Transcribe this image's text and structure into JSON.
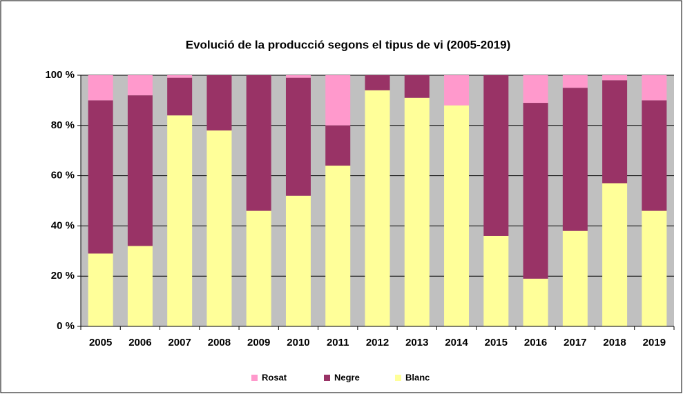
{
  "chart_data": {
    "type": "stacked_bar",
    "title": "Evolució de la producció segons el tipus de vi (2005-2019)",
    "categories": [
      "2005",
      "2006",
      "2007",
      "2008",
      "2009",
      "2010",
      "2011",
      "2012",
      "2013",
      "2014",
      "2015",
      "2016",
      "2017",
      "2018",
      "2019"
    ],
    "series": [
      {
        "name": "Blanc",
        "color": "#ffff99",
        "values": [
          29,
          32,
          84,
          78,
          46,
          52,
          64,
          94,
          91,
          88,
          36,
          19,
          38,
          57,
          46
        ]
      },
      {
        "name": "Negre",
        "color": "#993366",
        "values": [
          61,
          60,
          15,
          22,
          54,
          47,
          16,
          6,
          9,
          0,
          64,
          70,
          57,
          41,
          44
        ]
      },
      {
        "name": "Rosat",
        "color": "#ff99cc",
        "values": [
          10,
          8,
          1,
          0,
          0,
          1,
          20,
          0,
          0,
          12,
          0,
          11,
          5,
          2,
          10
        ]
      }
    ],
    "ylim": [
      0,
      100
    ],
    "yticks": [
      {
        "value": 0,
        "label": "0 %"
      },
      {
        "value": 20,
        "label": "20 %"
      },
      {
        "value": 40,
        "label": "40 %"
      },
      {
        "value": 60,
        "label": "60 %"
      },
      {
        "value": 80,
        "label": "80 %"
      },
      {
        "value": 100,
        "label": "100 %"
      }
    ],
    "grid": true,
    "legend": "bottom"
  }
}
